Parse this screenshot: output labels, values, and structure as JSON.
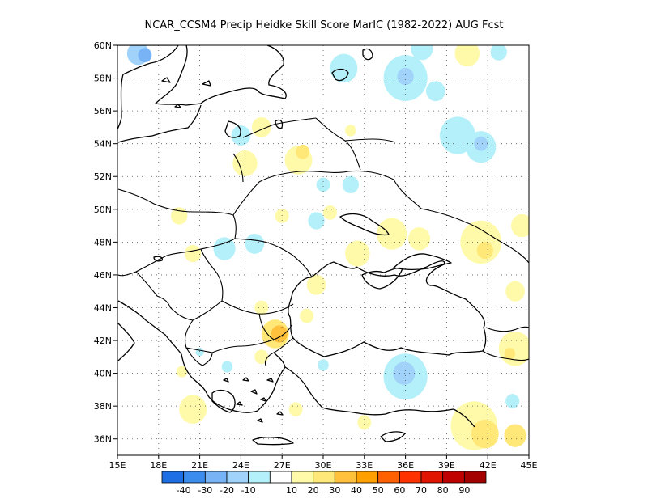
{
  "title": "NCAR_CCSM4 Precip Heidke Skill Score MarIC (1982-2022) AUG Fcst",
  "map": {
    "lon_range": [
      15,
      45
    ],
    "lat_range": [
      35,
      60
    ],
    "lon_ticks": [
      {
        "value": 15,
        "label": "15E"
      },
      {
        "value": 18,
        "label": "18E"
      },
      {
        "value": 21,
        "label": "21E"
      },
      {
        "value": 24,
        "label": "24E"
      },
      {
        "value": 27,
        "label": "27E"
      },
      {
        "value": 30,
        "label": "30E"
      },
      {
        "value": 33,
        "label": "33E"
      },
      {
        "value": 36,
        "label": "36E"
      },
      {
        "value": 39,
        "label": "39E"
      },
      {
        "value": 42,
        "label": "42E"
      },
      {
        "value": 45,
        "label": "45E"
      }
    ],
    "lat_ticks": [
      {
        "value": 60,
        "label": "60N"
      },
      {
        "value": 58,
        "label": "58N"
      },
      {
        "value": 56,
        "label": "56N"
      },
      {
        "value": 54,
        "label": "54N"
      },
      {
        "value": 52,
        "label": "52N"
      },
      {
        "value": 50,
        "label": "50N"
      },
      {
        "value": 48,
        "label": "48N"
      },
      {
        "value": 46,
        "label": "46N"
      },
      {
        "value": 44,
        "label": "44N"
      },
      {
        "value": 42,
        "label": "42N"
      },
      {
        "value": 40,
        "label": "40N"
      },
      {
        "value": 38,
        "label": "38N"
      },
      {
        "value": 36,
        "label": "36N"
      }
    ],
    "gridlines": "dotted",
    "skill_patches": [
      {
        "lon": 16.5,
        "lat": 59.5,
        "r": 0.8,
        "level": "-20"
      },
      {
        "lon": 17.0,
        "lat": 59.4,
        "r": 0.5,
        "level": "-30"
      },
      {
        "lon": 31.5,
        "lat": 58.6,
        "r": 1.0,
        "level": "-10"
      },
      {
        "lon": 36.0,
        "lat": 58.0,
        "r": 1.6,
        "level": "-10"
      },
      {
        "lon": 36.0,
        "lat": 58.1,
        "r": 0.6,
        "level": "-20"
      },
      {
        "lon": 37.2,
        "lat": 59.8,
        "r": 0.8,
        "level": "-10"
      },
      {
        "lon": 38.2,
        "lat": 57.2,
        "r": 0.7,
        "level": "-10"
      },
      {
        "lon": 40.5,
        "lat": 59.5,
        "r": 0.9,
        "level": "10"
      },
      {
        "lon": 42.8,
        "lat": 59.6,
        "r": 0.6,
        "level": "-10"
      },
      {
        "lon": 39.8,
        "lat": 54.5,
        "r": 1.3,
        "level": "-10"
      },
      {
        "lon": 41.5,
        "lat": 53.8,
        "r": 1.1,
        "level": "-10"
      },
      {
        "lon": 41.5,
        "lat": 54.0,
        "r": 0.5,
        "level": "-20"
      },
      {
        "lon": 25.5,
        "lat": 55.0,
        "r": 0.7,
        "level": "10"
      },
      {
        "lon": 24.0,
        "lat": 54.5,
        "r": 0.7,
        "level": "-10"
      },
      {
        "lon": 24.3,
        "lat": 52.8,
        "r": 0.9,
        "level": "10"
      },
      {
        "lon": 28.2,
        "lat": 53.0,
        "r": 1.0,
        "level": "10"
      },
      {
        "lon": 28.5,
        "lat": 53.5,
        "r": 0.5,
        "level": "20"
      },
      {
        "lon": 32.0,
        "lat": 54.8,
        "r": 0.4,
        "level": "10"
      },
      {
        "lon": 30.0,
        "lat": 51.5,
        "r": 0.5,
        "level": "-10"
      },
      {
        "lon": 32.0,
        "lat": 51.5,
        "r": 0.6,
        "level": "-10"
      },
      {
        "lon": 29.5,
        "lat": 49.3,
        "r": 0.6,
        "level": "-10"
      },
      {
        "lon": 30.5,
        "lat": 49.8,
        "r": 0.5,
        "level": "10"
      },
      {
        "lon": 27.0,
        "lat": 49.6,
        "r": 0.5,
        "level": "10"
      },
      {
        "lon": 25.0,
        "lat": 47.9,
        "r": 0.7,
        "level": "-10"
      },
      {
        "lon": 22.8,
        "lat": 47.6,
        "r": 0.8,
        "level": "-10"
      },
      {
        "lon": 20.5,
        "lat": 47.3,
        "r": 0.6,
        "level": "10"
      },
      {
        "lon": 19.5,
        "lat": 49.6,
        "r": 0.6,
        "level": "10"
      },
      {
        "lon": 35.0,
        "lat": 48.5,
        "r": 1.1,
        "level": "10"
      },
      {
        "lon": 37.0,
        "lat": 48.2,
        "r": 0.8,
        "level": "10"
      },
      {
        "lon": 41.5,
        "lat": 48.0,
        "r": 1.5,
        "level": "10"
      },
      {
        "lon": 41.8,
        "lat": 47.5,
        "r": 0.6,
        "level": "20"
      },
      {
        "lon": 44.5,
        "lat": 49.0,
        "r": 0.8,
        "level": "10"
      },
      {
        "lon": 32.5,
        "lat": 47.3,
        "r": 0.9,
        "level": "10"
      },
      {
        "lon": 29.5,
        "lat": 45.4,
        "r": 0.7,
        "level": "10"
      },
      {
        "lon": 44.0,
        "lat": 45.0,
        "r": 0.7,
        "level": "10"
      },
      {
        "lon": 25.5,
        "lat": 44.0,
        "r": 0.5,
        "level": "10"
      },
      {
        "lon": 26.5,
        "lat": 42.4,
        "r": 1.0,
        "level": "20"
      },
      {
        "lon": 26.8,
        "lat": 42.4,
        "r": 0.6,
        "level": "30"
      },
      {
        "lon": 28.8,
        "lat": 43.5,
        "r": 0.5,
        "level": "10"
      },
      {
        "lon": 25.5,
        "lat": 41.0,
        "r": 0.5,
        "level": "10"
      },
      {
        "lon": 36.0,
        "lat": 39.8,
        "r": 1.6,
        "level": "-10"
      },
      {
        "lon": 35.9,
        "lat": 40.0,
        "r": 0.8,
        "level": "-20"
      },
      {
        "lon": 30.0,
        "lat": 40.5,
        "r": 0.4,
        "level": "-10"
      },
      {
        "lon": 44.0,
        "lat": 41.5,
        "r": 1.2,
        "level": "10"
      },
      {
        "lon": 43.6,
        "lat": 41.2,
        "r": 0.4,
        "level": "20"
      },
      {
        "lon": 43.8,
        "lat": 38.3,
        "r": 0.5,
        "level": "-10"
      },
      {
        "lon": 41.0,
        "lat": 36.8,
        "r": 1.7,
        "level": "10"
      },
      {
        "lon": 41.8,
        "lat": 36.3,
        "r": 1.0,
        "level": "20"
      },
      {
        "lon": 44.0,
        "lat": 36.2,
        "r": 0.8,
        "level": "20"
      },
      {
        "lon": 20.5,
        "lat": 37.8,
        "r": 1.0,
        "level": "10"
      },
      {
        "lon": 23.0,
        "lat": 40.4,
        "r": 0.4,
        "level": "-10"
      },
      {
        "lon": 21.0,
        "lat": 41.3,
        "r": 0.3,
        "level": "-10"
      },
      {
        "lon": 19.7,
        "lat": 40.1,
        "r": 0.4,
        "level": "10"
      },
      {
        "lon": 28.0,
        "lat": 37.8,
        "r": 0.5,
        "level": "10"
      },
      {
        "lon": 33.0,
        "lat": 37.0,
        "r": 0.5,
        "level": "10"
      }
    ]
  },
  "colorbar": {
    "labels": [
      "-40",
      "-30",
      "-20",
      "-10",
      "10",
      "20",
      "30",
      "40",
      "50",
      "60",
      "70",
      "80",
      "90"
    ],
    "colors": {
      "-50": "#1e6ee6",
      "-40": "#3c8cf0",
      "-30": "#78b4f5",
      "-20": "#a0d2fa",
      "-10": "#b4f0fa",
      "0": "#ffffff",
      "10": "#fffaaa",
      "20": "#ffe878",
      "30": "#ffc03c",
      "40": "#ffa000",
      "50": "#ff6000",
      "60": "#ff3200",
      "70": "#e11400",
      "80": "#c00000",
      "90": "#a50000"
    },
    "order": [
      "-50",
      "-40",
      "-30",
      "-20",
      "-10",
      "0",
      "10",
      "20",
      "30",
      "40",
      "50",
      "60",
      "70",
      "80",
      "90"
    ]
  }
}
